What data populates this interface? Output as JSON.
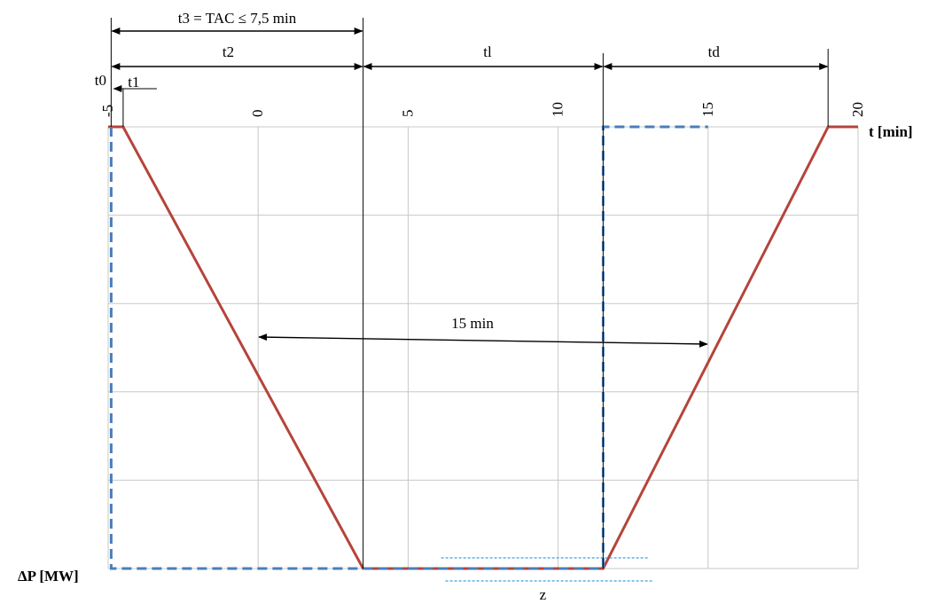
{
  "chart_data": {
    "type": "line",
    "xlabel": "t [min]",
    "ylabel": "ΔP [MW]",
    "xlim": [
      -5,
      20
    ],
    "x_ticks": [
      "-5",
      "0",
      "5",
      "10",
      "15",
      "20"
    ],
    "horizontal_gridlines": 5,
    "grid": true,
    "series": [
      {
        "style": "solid",
        "color": "#b5443a",
        "x": [
          -5,
          -4.5,
          3.5,
          11.5,
          19,
          20
        ],
        "y": [
          0,
          0,
          -1,
          -1,
          0,
          0
        ]
      },
      {
        "style": "dashed",
        "color": "#4a7ebb",
        "x": [
          -4.9,
          -4.9,
          11.5,
          11.5,
          15
        ],
        "y": [
          0,
          -1,
          -1,
          0,
          0
        ]
      }
    ],
    "annotations": {
      "t3": "t3 = TAC ≤ 7,5 min",
      "t2": "t2",
      "tl": "tl",
      "td": "td",
      "t0": "t0",
      "t1": "t1",
      "span": "15 min",
      "z": "z"
    },
    "markers": {
      "t0_x": -4.9,
      "t1_x": -4.5,
      "t2_end_x": 3.5,
      "tl_end_x": 11.5,
      "td_end_x": 19,
      "span_x": [
        0,
        15
      ]
    }
  },
  "colors": {
    "solid_line": "#b5443a",
    "dashed_line": "#4a7ebb",
    "grid": "#c8c8c8",
    "z_band": "#3aa0e0"
  }
}
